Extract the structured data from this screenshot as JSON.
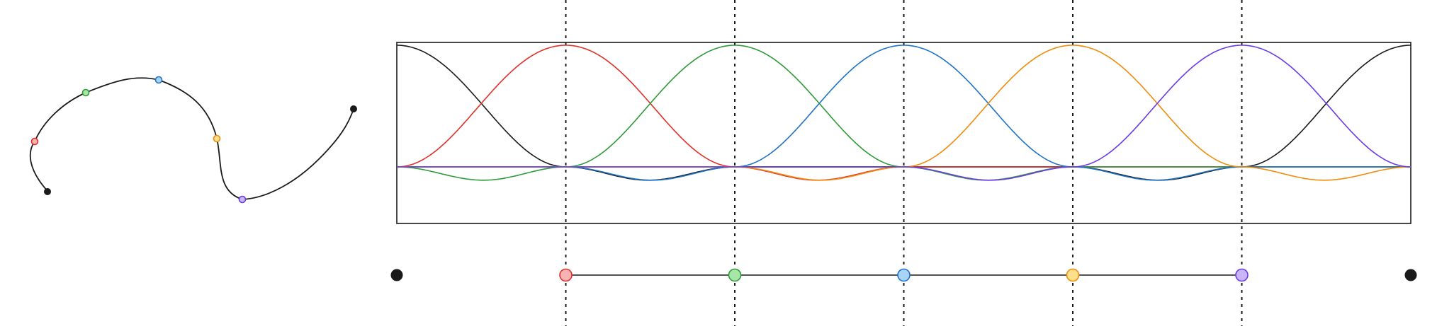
{
  "colors": {
    "black": "#1a1a1a",
    "red": "#e0302a",
    "green": "#2f9a3a",
    "blue": "#1f73c8",
    "orange": "#ef8c0e",
    "purple": "#6a3be6"
  },
  "point_fills": {
    "red": "#f7b3b3",
    "green": "#a8e6a8",
    "blue": "#a9d4f7",
    "orange": "#ffe08a",
    "purple": "#c9b5f7"
  },
  "curve": {
    "endpoints": [
      "black",
      "black"
    ],
    "points": [
      "red",
      "green",
      "blue",
      "orange",
      "purple"
    ]
  },
  "basis": {
    "series": [
      "black",
      "red",
      "green",
      "blue",
      "orange",
      "purple"
    ],
    "knots": [
      0,
      1,
      2,
      3,
      4,
      5,
      6
    ],
    "interior_knots": [
      1,
      2,
      3,
      4,
      5
    ],
    "ylim": [
      -0.46,
      1.03
    ]
  },
  "slider": {
    "endpoint_handles": [
      "black",
      "black"
    ],
    "handles": [
      "red",
      "green",
      "blue",
      "orange",
      "purple"
    ]
  }
}
